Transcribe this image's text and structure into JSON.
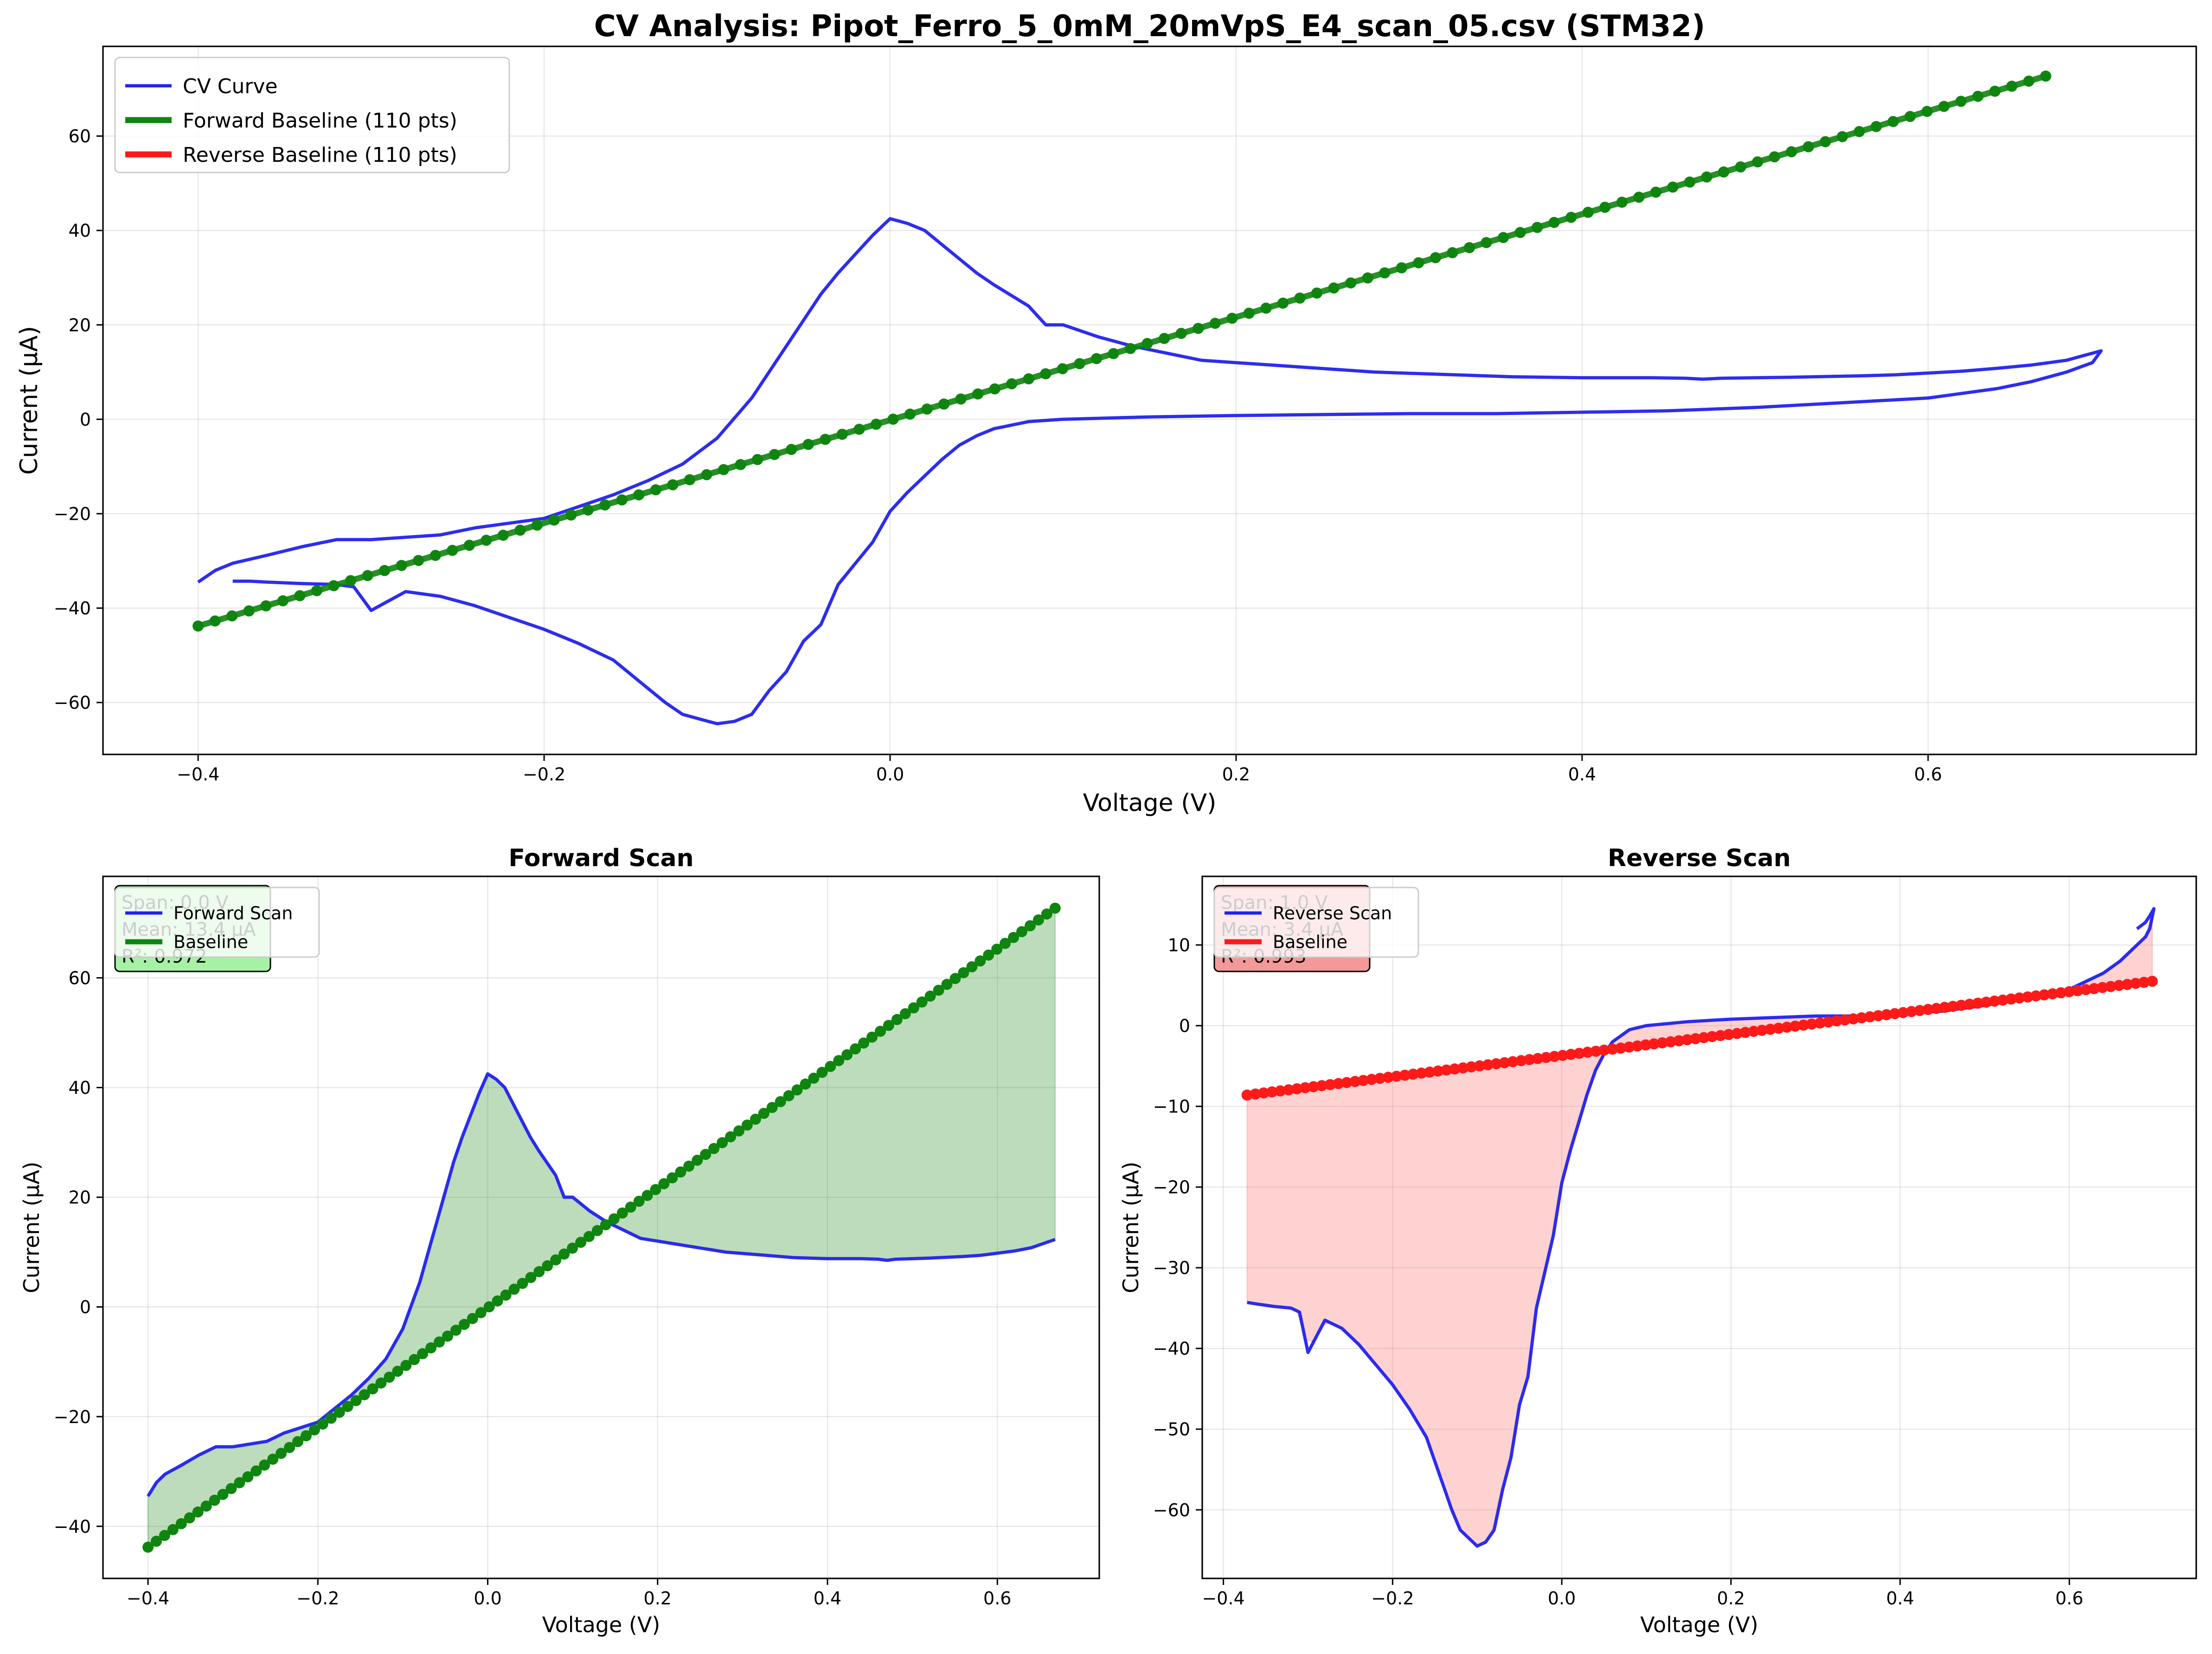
{
  "chart_data": [
    {
      "id": "main",
      "type": "line",
      "title": "CV Analysis: Pipot_Ferro_5_0mM_20mVpS_E4_scan_05.csv (STM32)",
      "xlabel": "Voltage (V)",
      "ylabel": "Current (μA)",
      "xlim": [
        -0.455,
        0.755
      ],
      "ylim": [
        -71,
        79
      ],
      "xticks": [
        -0.4,
        -0.2,
        0.0,
        0.2,
        0.4,
        0.6
      ],
      "xtick_labels": [
        "−0.4",
        "−0.2",
        "0.0",
        "0.2",
        "0.4",
        "0.6"
      ],
      "yticks": [
        -60,
        -40,
        -20,
        0,
        20,
        40,
        60
      ],
      "ytick_labels": [
        "−60",
        "−40",
        "−20",
        "0",
        "20",
        "40",
        "60"
      ],
      "grid": true,
      "legend": {
        "placement": "upper-left",
        "entries": [
          {
            "label": "CV Curve",
            "color": "#2222ee"
          },
          {
            "label": "Forward Baseline (110 pts)",
            "color": "#0f850f"
          },
          {
            "label": "Reverse Baseline (110 pts)",
            "color": "#ff1a1a"
          }
        ]
      },
      "series": [
        {
          "name": "CV Curve",
          "role": "curve",
          "color": "#2222ee",
          "x": [
            -0.4,
            -0.39,
            -0.38,
            -0.36,
            -0.34,
            -0.32,
            -0.3,
            -0.26,
            -0.24,
            -0.22,
            -0.2,
            -0.18,
            -0.16,
            -0.14,
            -0.12,
            -0.1,
            -0.08,
            -0.06,
            -0.04,
            -0.03,
            -0.02,
            -0.01,
            0.0,
            0.01,
            0.02,
            0.03,
            0.04,
            0.05,
            0.06,
            0.08,
            0.09,
            0.1,
            0.12,
            0.14,
            0.16,
            0.18,
            0.2,
            0.22,
            0.24,
            0.28,
            0.32,
            0.36,
            0.4,
            0.44,
            0.46,
            0.47,
            0.48,
            0.52,
            0.56,
            0.58,
            0.6,
            0.62,
            0.64,
            0.66,
            0.68,
            0.69,
            0.7,
            0.695,
            0.68,
            0.66,
            0.64,
            0.62,
            0.6,
            0.55,
            0.5,
            0.45,
            0.4,
            0.35,
            0.3,
            0.25,
            0.2,
            0.15,
            0.1,
            0.08,
            0.06,
            0.05,
            0.04,
            0.03,
            0.02,
            0.01,
            0.0,
            -0.01,
            -0.02,
            -0.03,
            -0.04,
            -0.05,
            -0.06,
            -0.07,
            -0.08,
            -0.09,
            -0.1,
            -0.11,
            -0.12,
            -0.13,
            -0.14,
            -0.16,
            -0.18,
            -0.2,
            -0.22,
            -0.24,
            -0.26,
            -0.28,
            -0.3,
            -0.305,
            -0.31,
            -0.32,
            -0.34,
            -0.36,
            -0.37,
            -0.38
          ],
          "y": [
            -34.5,
            -32.0,
            -30.5,
            -28.8,
            -27.0,
            -25.5,
            -25.5,
            -24.5,
            -23.0,
            -22.0,
            -21.0,
            -18.5,
            -16.0,
            -13.0,
            -9.5,
            -4.0,
            4.5,
            15.5,
            26.5,
            31.0,
            35.0,
            39.0,
            42.5,
            41.5,
            40.0,
            37.0,
            34.0,
            31.0,
            28.5,
            24.0,
            20.0,
            20.0,
            17.5,
            15.5,
            14.0,
            12.5,
            12.0,
            11.5,
            11.0,
            10.0,
            9.5,
            9.0,
            8.8,
            8.8,
            8.7,
            8.5,
            8.7,
            8.9,
            9.2,
            9.4,
            9.8,
            10.2,
            10.8,
            11.5,
            12.5,
            13.5,
            14.5,
            12.0,
            10.0,
            8.0,
            6.5,
            5.5,
            4.5,
            3.5,
            2.5,
            1.8,
            1.5,
            1.2,
            1.2,
            1.0,
            0.8,
            0.5,
            0.0,
            -0.5,
            -2.0,
            -3.5,
            -5.5,
            -8.5,
            -12.0,
            -15.5,
            -19.5,
            -26.0,
            -30.5,
            -35.0,
            -43.5,
            -47.0,
            -53.5,
            -57.5,
            -62.5,
            -64.0,
            -64.5,
            -63.5,
            -62.5,
            -60.0,
            -57.0,
            -51.0,
            -47.5,
            -44.5,
            -42.0,
            -39.5,
            -37.5,
            -36.5,
            -40.5,
            -38.0,
            -35.5,
            -35.0,
            -34.8,
            -34.5,
            -34.3,
            -34.3
          ]
        },
        {
          "name": "Forward Baseline (110 pts)",
          "role": "baseline",
          "color": "#0f850f",
          "x_start": -0.4,
          "x_end": 0.668,
          "y_start": -43.8,
          "y_end": 72.7,
          "points": 110
        },
        {
          "name": "Reverse Baseline (110 pts)",
          "role": "baseline",
          "color": "#ff1a1a",
          "x_start": -0.372,
          "x_end": 0.698,
          "y_start": -8.6,
          "y_end": 5.5,
          "points": 110
        }
      ]
    },
    {
      "id": "forward",
      "type": "line",
      "title": "Forward Scan",
      "xlabel": "Voltage (V)",
      "ylabel": "Current (μA)",
      "xlim": [
        -0.453,
        0.72
      ],
      "ylim": [
        -49.5,
        78.5
      ],
      "xticks": [
        -0.4,
        -0.2,
        0.0,
        0.2,
        0.4,
        0.6
      ],
      "xtick_labels": [
        "−0.4",
        "−0.2",
        "0.0",
        "0.2",
        "0.4",
        "0.6"
      ],
      "yticks": [
        -40,
        -20,
        0,
        20,
        40,
        60
      ],
      "ytick_labels": [
        "−40",
        "−20",
        "0",
        "20",
        "40",
        "60"
      ],
      "grid": true,
      "fill_color": "#228b22",
      "stats_box": {
        "lines": [
          "Span: 0.0 V",
          "Mean: 13.4 μA",
          "R²: 0.972"
        ],
        "facecolor": "#90ee90"
      },
      "legend": {
        "placement": "upper-left",
        "entries": [
          {
            "label": "Forward Scan",
            "color": "#2222ee"
          },
          {
            "label": "Baseline",
            "color": "#0f850f"
          }
        ]
      },
      "series": [
        {
          "name": "Forward Scan",
          "role": "curve",
          "color": "#2222ee",
          "x": [
            -0.4,
            -0.39,
            -0.38,
            -0.36,
            -0.34,
            -0.32,
            -0.3,
            -0.26,
            -0.24,
            -0.22,
            -0.2,
            -0.18,
            -0.16,
            -0.14,
            -0.12,
            -0.1,
            -0.08,
            -0.06,
            -0.04,
            -0.03,
            -0.02,
            -0.01,
            0.0,
            0.01,
            0.02,
            0.03,
            0.04,
            0.05,
            0.06,
            0.08,
            0.09,
            0.1,
            0.12,
            0.14,
            0.16,
            0.18,
            0.2,
            0.22,
            0.24,
            0.28,
            0.32,
            0.36,
            0.4,
            0.44,
            0.46,
            0.47,
            0.48,
            0.52,
            0.56,
            0.58,
            0.6,
            0.62,
            0.64,
            0.668
          ],
          "y": [
            -34.5,
            -32.0,
            -30.5,
            -28.8,
            -27.0,
            -25.5,
            -25.5,
            -24.5,
            -23.0,
            -22.0,
            -21.0,
            -18.5,
            -16.0,
            -13.0,
            -9.5,
            -4.0,
            4.5,
            15.5,
            26.5,
            31.0,
            35.0,
            39.0,
            42.5,
            41.5,
            40.0,
            37.0,
            34.0,
            31.0,
            28.5,
            24.0,
            20.0,
            20.0,
            17.5,
            15.5,
            14.0,
            12.5,
            12.0,
            11.5,
            11.0,
            10.0,
            9.5,
            9.0,
            8.8,
            8.8,
            8.7,
            8.5,
            8.7,
            8.9,
            9.2,
            9.4,
            9.8,
            10.2,
            10.8,
            12.3
          ]
        },
        {
          "name": "Baseline",
          "role": "baseline",
          "color": "#0f850f",
          "x_start": -0.4,
          "x_end": 0.668,
          "y_start": -43.8,
          "y_end": 72.7,
          "points": 110
        }
      ]
    },
    {
      "id": "reverse",
      "type": "line",
      "title": "Reverse Scan",
      "xlabel": "Voltage (V)",
      "ylabel": "Current (μA)",
      "xlim": [
        -0.425,
        0.75
      ],
      "ylim": [
        -68.5,
        18.5
      ],
      "xticks": [
        -0.4,
        -0.2,
        0.0,
        0.2,
        0.4,
        0.6
      ],
      "xtick_labels": [
        "−0.4",
        "−0.2",
        "0.0",
        "0.2",
        "0.4",
        "0.6"
      ],
      "yticks": [
        -60,
        -50,
        -40,
        -30,
        -20,
        -10,
        0,
        10
      ],
      "ytick_labels": [
        "−60",
        "−50",
        "−40",
        "−30",
        "−20",
        "−10",
        "0",
        "10"
      ],
      "grid": true,
      "fill_color": "#ff6b6b",
      "stats_box": {
        "lines": [
          "Span: 1.0 V",
          "Mean: 3.4 μA",
          "R²: 0.993"
        ],
        "facecolor": "#f08080"
      },
      "legend": {
        "placement": "upper-left",
        "entries": [
          {
            "label": "Reverse Scan",
            "color": "#2222ee"
          },
          {
            "label": "Baseline",
            "color": "#ff1a1a"
          }
        ]
      },
      "series": [
        {
          "name": "Reverse Scan",
          "role": "curve",
          "color": "#2222ee",
          "x": [
            0.68,
            0.69,
            0.695,
            0.7,
            0.695,
            0.69,
            0.68,
            0.66,
            0.64,
            0.62,
            0.6,
            0.55,
            0.5,
            0.45,
            0.4,
            0.35,
            0.3,
            0.25,
            0.2,
            0.15,
            0.1,
            0.08,
            0.06,
            0.05,
            0.04,
            0.03,
            0.02,
            0.01,
            0.0,
            -0.01,
            -0.02,
            -0.03,
            -0.04,
            -0.05,
            -0.06,
            -0.07,
            -0.08,
            -0.09,
            -0.1,
            -0.11,
            -0.12,
            -0.13,
            -0.14,
            -0.16,
            -0.18,
            -0.2,
            -0.22,
            -0.24,
            -0.26,
            -0.28,
            -0.3,
            -0.305,
            -0.31,
            -0.32,
            -0.34,
            -0.36,
            -0.372
          ],
          "y": [
            12.0,
            12.8,
            13.6,
            14.5,
            12.0,
            11.0,
            10.0,
            8.0,
            6.5,
            5.5,
            4.5,
            3.5,
            2.5,
            1.8,
            1.5,
            1.2,
            1.2,
            1.0,
            0.8,
            0.5,
            0.0,
            -0.5,
            -2.0,
            -3.5,
            -5.5,
            -8.5,
            -12.0,
            -15.5,
            -19.5,
            -26.0,
            -30.5,
            -35.0,
            -43.5,
            -47.0,
            -53.5,
            -57.5,
            -62.5,
            -64.0,
            -64.5,
            -63.5,
            -62.5,
            -60.0,
            -57.0,
            -51.0,
            -47.5,
            -44.5,
            -42.0,
            -39.5,
            -37.5,
            -36.5,
            -40.5,
            -38.0,
            -35.5,
            -35.0,
            -34.8,
            -34.5,
            -34.3
          ]
        },
        {
          "name": "Baseline",
          "role": "baseline",
          "color": "#ff1a1a",
          "x_start": -0.372,
          "x_end": 0.698,
          "y_start": -8.6,
          "y_end": 5.5,
          "points": 110
        }
      ]
    }
  ]
}
